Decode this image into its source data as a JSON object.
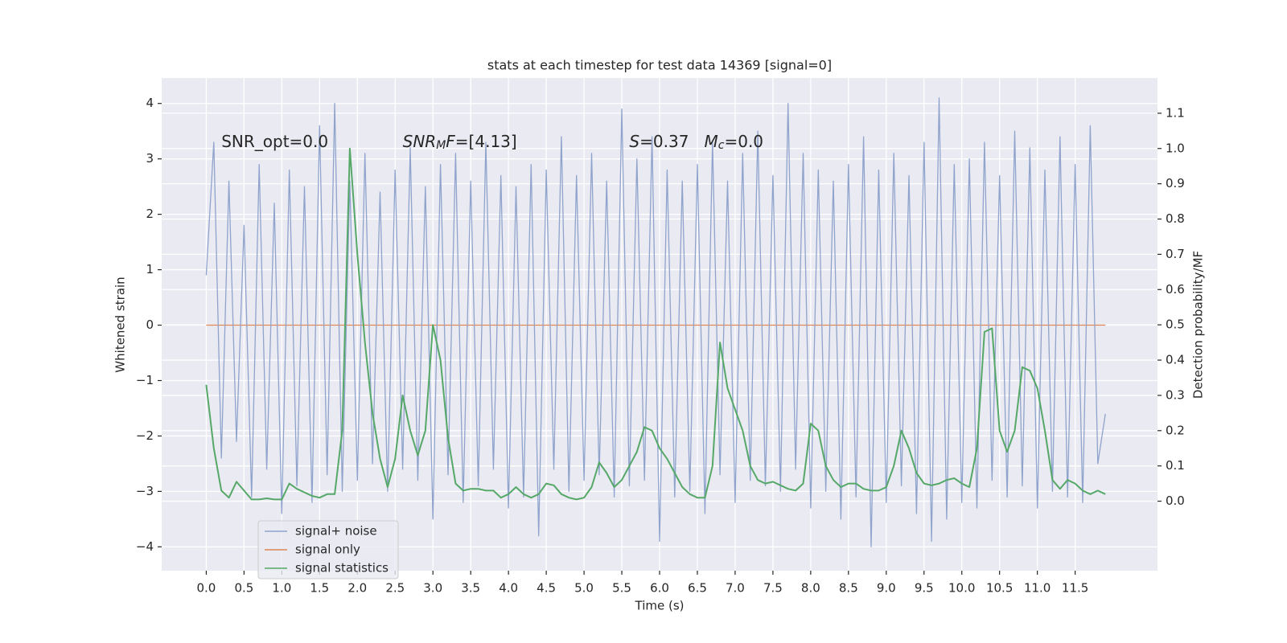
{
  "chart_data": {
    "type": "line",
    "title": "stats at each timestep for test data 14369 [signal=0]",
    "xlabel": "Time (s)",
    "ylabel": "Whitened strain",
    "y2label": "Detection probability/MF",
    "x": [
      0,
      0.1,
      0.2,
      0.3,
      0.4,
      0.5,
      0.6,
      0.7,
      0.8,
      0.9,
      1,
      1.1,
      1.2,
      1.3,
      1.4,
      1.5,
      1.6,
      1.7,
      1.8,
      1.9,
      2,
      2.1,
      2.2,
      2.3,
      2.4,
      2.5,
      2.6,
      2.7,
      2.8,
      2.9,
      3,
      3.1,
      3.2,
      3.3,
      3.4,
      3.5,
      3.6,
      3.7,
      3.8,
      3.9,
      4,
      4.1,
      4.2,
      4.3,
      4.4,
      4.5,
      4.6,
      4.7,
      4.8,
      4.9,
      5,
      5.1,
      5.2,
      5.3,
      5.4,
      5.5,
      5.6,
      5.7,
      5.8,
      5.9,
      6,
      6.1,
      6.2,
      6.3,
      6.4,
      6.5,
      6.6,
      6.7,
      6.8,
      6.9,
      7,
      7.1,
      7.2,
      7.3,
      7.4,
      7.5,
      7.6,
      7.7,
      7.8,
      7.9,
      8,
      8.1,
      8.2,
      8.3,
      8.4,
      8.5,
      8.6,
      8.7,
      8.8,
      8.9,
      9,
      9.1,
      9.2,
      9.3,
      9.4,
      9.5,
      9.6,
      9.7,
      9.8,
      9.9,
      10,
      10.1,
      10.2,
      10.3,
      10.4,
      10.5,
      10.6,
      10.7,
      10.8,
      10.9,
      11,
      11.1,
      11.2,
      11.3,
      11.4,
      11.5,
      11.6,
      11.7,
      11.8,
      11.9
    ],
    "series": [
      {
        "name": "signal only",
        "color": "#dd8452",
        "values": [
          0,
          0,
          0,
          0,
          0,
          0,
          0,
          0,
          0,
          0,
          0,
          0,
          0,
          0,
          0,
          0,
          0,
          0,
          0,
          0,
          0,
          0,
          0,
          0,
          0,
          0,
          0,
          0,
          0,
          0,
          0,
          0,
          0,
          0,
          0,
          0,
          0,
          0,
          0,
          0,
          0,
          0,
          0,
          0,
          0,
          0,
          0,
          0,
          0,
          0,
          0,
          0,
          0,
          0,
          0,
          0,
          0,
          0,
          0,
          0,
          0,
          0,
          0,
          0,
          0,
          0,
          0,
          0,
          0,
          0,
          0,
          0,
          0,
          0,
          0,
          0,
          0,
          0,
          0,
          0,
          0,
          0,
          0,
          0,
          0,
          0,
          0,
          0,
          0,
          0,
          0,
          0,
          0,
          0,
          0,
          0,
          0,
          0,
          0,
          0,
          0,
          0,
          0,
          0,
          0,
          0,
          0,
          0,
          0,
          0,
          0,
          0,
          0,
          0,
          0,
          0,
          0,
          0,
          0,
          0
        ]
      },
      {
        "name": "signal+ noise",
        "color": "#8fa3cc",
        "values": [
          0.9,
          3.3,
          -2.4,
          2.6,
          -2.1,
          1.8,
          -3.1,
          2.9,
          -2.6,
          2.2,
          -3.4,
          2.8,
          -2.9,
          2.5,
          -3.2,
          3.6,
          -2.7,
          4.0,
          -3.0,
          2.6,
          -2.8,
          3.1,
          -2.5,
          2.4,
          -3.0,
          2.8,
          -2.6,
          3.2,
          -2.8,
          2.5,
          -3.5,
          2.9,
          -2.7,
          3.1,
          -3.2,
          2.6,
          -2.9,
          3.3,
          -2.6,
          2.7,
          -3.3,
          2.5,
          -3.1,
          2.9,
          -3.8,
          2.8,
          -2.6,
          3.4,
          -3.0,
          2.7,
          -2.8,
          3.1,
          -2.7,
          2.6,
          -3.1,
          3.9,
          -2.9,
          3.0,
          -2.8,
          3.4,
          -3.9,
          2.8,
          -3.1,
          2.6,
          -3.0,
          2.9,
          -3.4,
          3.3,
          -2.7,
          2.6,
          -3.2,
          3.1,
          -2.8,
          3.5,
          -2.9,
          2.7,
          -3.0,
          4.0,
          -2.6,
          3.1,
          -3.3,
          2.8,
          -3.0,
          2.6,
          -3.5,
          2.9,
          -3.1,
          3.4,
          -4.0,
          2.8,
          -3.2,
          3.1,
          -2.9,
          2.7,
          -3.4,
          3.3,
          -3.9,
          4.1,
          -3.5,
          2.9,
          -3.2,
          3.0,
          -3.3,
          3.3,
          -2.8,
          2.7,
          -3.1,
          3.5,
          -2.9,
          3.2,
          -3.3,
          2.8,
          -3.0,
          3.4,
          -3.1,
          2.9,
          -3.2,
          3.6,
          -2.5,
          -1.6
        ]
      },
      {
        "name": "signal statistics",
        "color": "#55a868",
        "axis": "y2",
        "values": [
          0.33,
          0.15,
          0.03,
          0.01,
          0.055,
          0.03,
          0.005,
          0.005,
          0.008,
          0.005,
          0.005,
          0.05,
          0.035,
          0.025,
          0.015,
          0.01,
          0.02,
          0.02,
          0.2,
          1.0,
          0.7,
          0.45,
          0.25,
          0.12,
          0.04,
          0.12,
          0.3,
          0.2,
          0.13,
          0.2,
          0.5,
          0.4,
          0.18,
          0.05,
          0.03,
          0.035,
          0.035,
          0.03,
          0.03,
          0.01,
          0.02,
          0.04,
          0.02,
          0.01,
          0.02,
          0.05,
          0.045,
          0.02,
          0.01,
          0.005,
          0.01,
          0.04,
          0.11,
          0.08,
          0.04,
          0.06,
          0.1,
          0.14,
          0.21,
          0.2,
          0.15,
          0.12,
          0.08,
          0.04,
          0.02,
          0.01,
          0.01,
          0.1,
          0.45,
          0.32,
          0.26,
          0.2,
          0.1,
          0.06,
          0.05,
          0.055,
          0.045,
          0.035,
          0.03,
          0.05,
          0.22,
          0.2,
          0.1,
          0.06,
          0.04,
          0.05,
          0.05,
          0.035,
          0.03,
          0.03,
          0.04,
          0.1,
          0.2,
          0.15,
          0.08,
          0.05,
          0.045,
          0.05,
          0.06,
          0.065,
          0.05,
          0.04,
          0.15,
          0.48,
          0.49,
          0.2,
          0.14,
          0.2,
          0.38,
          0.37,
          0.32,
          0.2,
          0.06,
          0.035,
          0.06,
          0.05,
          0.03,
          0.02,
          0.03,
          0.02
        ]
      }
    ],
    "legend": [
      "signal+ noise",
      "signal only",
      "signal statistics"
    ],
    "legend_loc": "lower left",
    "annotations": [
      {
        "x": 0.2,
        "y": 3.3,
        "parts": [
          {
            "text": "SNR_opt=0.0"
          }
        ]
      },
      {
        "x": 2.6,
        "y": 3.3,
        "parts": [
          {
            "text": "SNR",
            "italic": true
          },
          {
            "text": "M",
            "italic": true,
            "sub": true
          },
          {
            "text": "F",
            "italic": true
          },
          {
            "text": "=[4.13]"
          }
        ]
      },
      {
        "x": 5.6,
        "y": 3.3,
        "parts": [
          {
            "text": "S",
            "italic": true
          },
          {
            "text": "=0.37   "
          },
          {
            "text": "M",
            "italic": true
          },
          {
            "text": "c",
            "italic": true,
            "sub": true
          },
          {
            "text": "=0.0"
          }
        ]
      }
    ],
    "xlim": [
      -0.59,
      12.59
    ],
    "xticks": [
      {
        "value": 0,
        "label": "0.0"
      },
      0.5,
      {
        "value": 1,
        "label": "1.0"
      },
      1.5,
      {
        "value": 2,
        "label": "2.0"
      },
      2.5,
      {
        "value": 3,
        "label": "3.0"
      },
      3.5,
      {
        "value": 4,
        "label": "4.0"
      },
      4.5,
      {
        "value": 5,
        "label": "5.0"
      },
      5.5,
      {
        "value": 6,
        "label": "6.0"
      },
      6.5,
      {
        "value": 7,
        "label": "7.0"
      },
      7.5,
      {
        "value": 8,
        "label": "8.0"
      },
      8.5,
      {
        "value": 9,
        "label": "9.0"
      },
      9.5,
      {
        "value": 10,
        "label": "10.0"
      },
      10.5,
      {
        "value": 11,
        "label": "11.0"
      },
      11.5
    ],
    "ylim": [
      -4.43,
      4.46
    ],
    "yticks": [
      {
        "value": -4,
        "label": "−4"
      },
      {
        "value": -3,
        "label": "−3"
      },
      {
        "value": -2,
        "label": "−2"
      },
      {
        "value": -1,
        "label": "−1"
      },
      0,
      1,
      2,
      3,
      4
    ],
    "y2lim": [
      -0.197,
      1.2
    ],
    "y2ticks": [
      {
        "value": 0,
        "label": "0.0"
      },
      0.1,
      0.2,
      0.3,
      0.4,
      0.5,
      0.6,
      0.7,
      0.8,
      0.9,
      {
        "value": 1,
        "label": "1.0"
      },
      1.1
    ],
    "grid": true,
    "background": "#eaeaf2"
  }
}
